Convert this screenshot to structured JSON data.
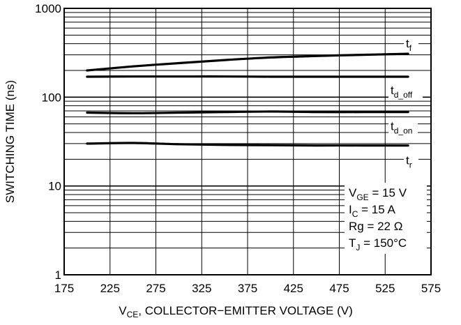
{
  "chart_data": {
    "type": "line",
    "title": "",
    "xlabel": {
      "prefix": "V",
      "sub": "CE",
      "rest": ", COLLECTOR−EMITTER VOLTAGE (V)"
    },
    "ylabel": "SWITCHING TIME (ns)",
    "xlim": [
      175,
      575
    ],
    "ylim": [
      1,
      1000
    ],
    "yscale": "log",
    "grid": true,
    "x_ticks": [
      "175",
      "225",
      "275",
      "325",
      "375",
      "425",
      "475",
      "525",
      "575"
    ],
    "y_ticks": [
      "1",
      "10",
      "100",
      "1000"
    ],
    "series": [
      {
        "name": "t_f",
        "label_main": "t",
        "label_sub": "f",
        "x": [
          200,
          250,
          300,
          350,
          400,
          450,
          500,
          550
        ],
        "y": [
          200,
          222,
          242,
          262,
          280,
          291,
          300,
          308
        ]
      },
      {
        "name": "t_d_off",
        "label_main": "t",
        "label_sub": "d_off",
        "x": [
          200,
          250,
          300,
          350,
          400,
          450,
          500,
          550
        ],
        "y": [
          170,
          171,
          171,
          171,
          170,
          170,
          170,
          170
        ]
      },
      {
        "name": "t_d_on",
        "label_main": "t",
        "label_sub": "d_on",
        "x": [
          200,
          250,
          300,
          350,
          400,
          450,
          500,
          550
        ],
        "y": [
          67,
          66,
          67,
          68,
          69,
          68,
          68,
          68
        ]
      },
      {
        "name": "t_r",
        "label_main": "t",
        "label_sub": "r",
        "x": [
          200,
          250,
          300,
          350,
          400,
          450,
          500,
          550
        ],
        "y": [
          30,
          30.5,
          29.5,
          29,
          28.8,
          28.6,
          28.6,
          28.5
        ]
      }
    ],
    "conditions": [
      {
        "main": "V",
        "sub": "GE",
        "rest": " = 15 V"
      },
      {
        "main": "I",
        "sub": "C",
        "rest": " = 15 A"
      },
      {
        "main": "Rg = 22 Ω",
        "sub": "",
        "rest": ""
      },
      {
        "main": "T",
        "sub": "J",
        "rest": " = 150°C"
      }
    ]
  }
}
